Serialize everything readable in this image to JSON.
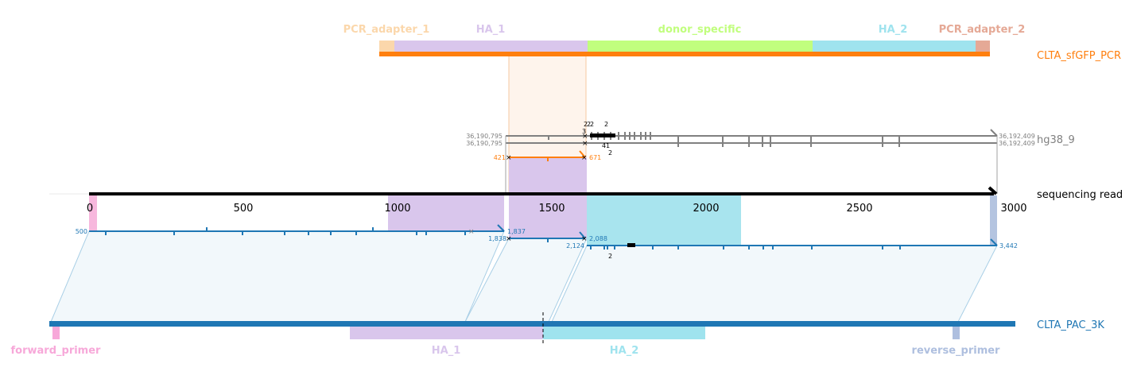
{
  "reference_top": {
    "name": "CLTA_sfGFP_PCR",
    "features": [
      {
        "label": "PCR_adapter_1",
        "color": "#fbd7ab"
      },
      {
        "label": "HA_1",
        "color": "#d9c6ec"
      },
      {
        "label": "donor_specific",
        "color": "#c1fe7e"
      },
      {
        "label": "HA_2",
        "color": "#9fe3ee"
      },
      {
        "label": "PCR_adapter_2",
        "color": "#e5a996"
      }
    ],
    "bar_color": "#ff7f0e"
  },
  "genome": {
    "name": "hg38_9",
    "left_coord_1": "36,190,795",
    "left_coord_2": "36,190,795",
    "right_coord_1": "36,192,409",
    "right_coord_2": "36,192,409",
    "orange_start": "421",
    "orange_end": "671",
    "marks": [
      "2",
      "2",
      "2",
      "2",
      "3",
      "4",
      "1",
      "2"
    ]
  },
  "read": {
    "name": "sequencing read",
    "ticks": [
      "0",
      "500",
      "1000",
      "1500",
      "2000",
      "2500",
      "3000"
    ],
    "seg1_start": "500",
    "seg1_end": "1,837",
    "seg2_start": "1,838",
    "seg2_end": "2,088",
    "seg3_start": "2,124",
    "seg3_end": "3,442",
    "seg3_mark": "2"
  },
  "reference_bottom": {
    "name": "CLTA_PAC_3K",
    "features": [
      {
        "label": "forward_primer",
        "color": "#f7a8d9"
      },
      {
        "label": "HA_1",
        "color": "#d9c6ec"
      },
      {
        "label": "HA_2",
        "color": "#9fe3ee"
      },
      {
        "label": "reverse_primer",
        "color": "#aebfdf"
      }
    ],
    "bar_color": "#1f77b4"
  }
}
